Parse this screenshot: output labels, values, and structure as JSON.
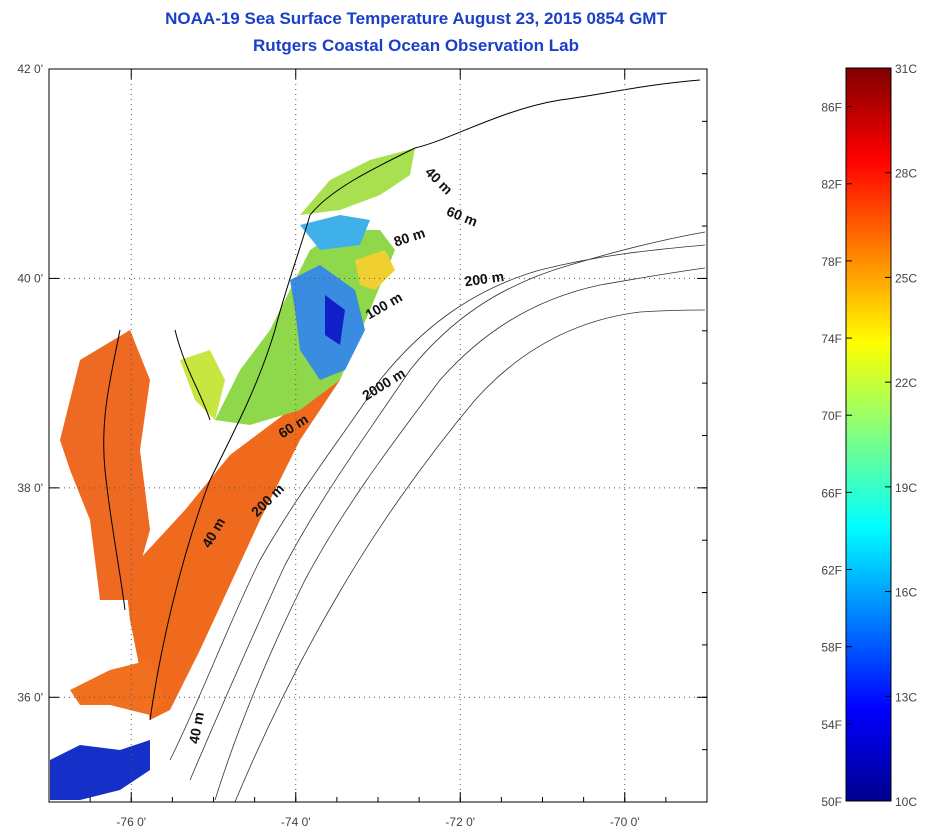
{
  "header": {
    "title_line1": "NOAA-19 Sea Surface Temperature August 23, 2015 0854 GMT",
    "title_line2": "Rutgers Coastal Ocean Observation Lab"
  },
  "map": {
    "lon_range": [
      -77,
      -69
    ],
    "lat_range": [
      35,
      42
    ],
    "lon_ticks": [
      {
        "value": -76,
        "label": "-76 0'"
      },
      {
        "value": -74,
        "label": "-74 0'"
      },
      {
        "value": -72,
        "label": "-72 0'"
      },
      {
        "value": -70,
        "label": "-70 0'"
      }
    ],
    "lat_ticks": [
      {
        "value": 36,
        "label": "36 0'"
      },
      {
        "value": 38,
        "label": "38 0'"
      },
      {
        "value": 40,
        "label": "40 0'"
      },
      {
        "value": 42,
        "label": "42 0'"
      }
    ],
    "grid": "dotted",
    "depth_labels": [
      {
        "text": "40 m",
        "lon": -72.3,
        "lat": 40.9,
        "angle": 45
      },
      {
        "text": "60 m",
        "lon": -72.0,
        "lat": 40.55,
        "angle": 22
      },
      {
        "text": "80 m",
        "lon": -72.6,
        "lat": 40.35,
        "angle": -18
      },
      {
        "text": "200 m",
        "lon": -71.7,
        "lat": 39.95,
        "angle": -8
      },
      {
        "text": "100 m",
        "lon": -72.9,
        "lat": 39.7,
        "angle": -30
      },
      {
        "text": "2000 m",
        "lon": -72.9,
        "lat": 38.95,
        "angle": -32
      },
      {
        "text": "60 m",
        "lon": -74.0,
        "lat": 38.55,
        "angle": -32
      },
      {
        "text": "200 m",
        "lon": -74.3,
        "lat": 37.85,
        "angle": -45
      },
      {
        "text": "40 m",
        "lon": -74.95,
        "lat": 37.55,
        "angle": -60
      },
      {
        "text": "40 m",
        "lon": -75.15,
        "lat": 35.7,
        "angle": -80
      }
    ],
    "colors": {
      "sst_warm": "#f06a1e",
      "sst_mid": "#8fd84c",
      "sst_cool": "#3a8ce0",
      "sst_cold": "#1020c8",
      "coast": "#000000",
      "isobath": "#222222"
    }
  },
  "colorbar": {
    "celsius_range": [
      10,
      31
    ],
    "fahrenheit_range": [
      50,
      88
    ],
    "celsius_labels": [
      "31C",
      "28C",
      "25C",
      "22C",
      "19C",
      "16C",
      "13C",
      "10C"
    ],
    "fahrenheit_labels": [
      "86F",
      "82F",
      "78F",
      "74F",
      "70F",
      "66F",
      "62F",
      "58F",
      "54F",
      "50F"
    ],
    "stops": [
      "#00008f",
      "#0000ff",
      "#0080ff",
      "#00ffff",
      "#80ff80",
      "#ffff00",
      "#ff8000",
      "#ff0000",
      "#800000"
    ]
  }
}
